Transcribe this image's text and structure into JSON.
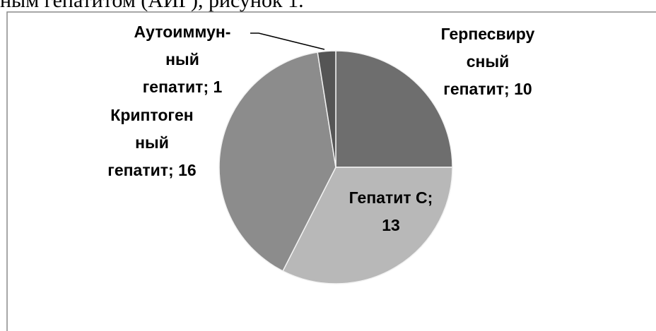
{
  "caption_fragment": "ным гепатитом (АИГ), рисунок 1.",
  "chart_data": {
    "type": "pie",
    "categories": [
      "Герпесвиру\nсный\nгепатит",
      "Гепатит С",
      "Криптоген\nный\nгепатит",
      "Аутоиммун-\nный\nгепатит"
    ],
    "values": [
      10,
      13,
      16,
      1
    ],
    "colors": [
      "#6e6e6e",
      "#b8b8b8",
      "#8c8c8c",
      "#555555"
    ],
    "label_separator": "; "
  }
}
